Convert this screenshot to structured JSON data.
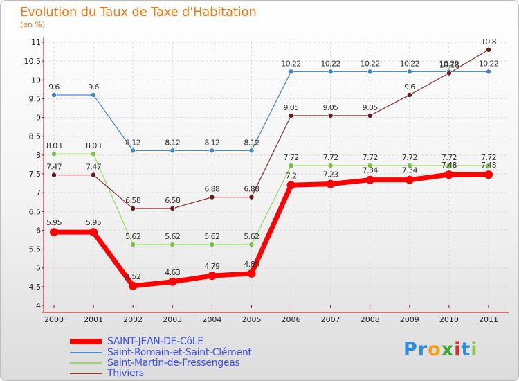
{
  "title": "Evolution du Taux de Taxe d'Habitation",
  "subtitle": "(en %)",
  "logo": {
    "text": "Proxiti",
    "letters": [
      "P",
      "r",
      "o",
      "x",
      "i",
      "t",
      "i"
    ],
    "colors": [
      "#2a8de0",
      "#2a8de0",
      "#f2a01c",
      "#3aa63a",
      "#e02a2a",
      "#2a8de0",
      "#8bc34a"
    ]
  },
  "chart_data": {
    "type": "line",
    "title": "Evolution du Taux de Taxe d'Habitation",
    "ylabel": "(en %)",
    "x": [
      "2000",
      "2001",
      "2002",
      "2003",
      "2004",
      "2005",
      "2006",
      "2007",
      "2008",
      "2009",
      "2010",
      "2011"
    ],
    "ylim": [
      4,
      11
    ],
    "yticks": [
      4,
      4.5,
      5,
      5.5,
      6,
      6.5,
      7,
      7.5,
      8,
      8.5,
      9,
      9.5,
      10,
      10.5,
      11
    ],
    "ytick_labels": [
      "4",
      "4.5",
      "5",
      "5.5",
      "6",
      "6.5",
      "7",
      "7.5",
      "8",
      "8.5",
      "9",
      "9.5",
      "10",
      "10.5",
      "11"
    ],
    "grid": true,
    "series": [
      {
        "name": "Saint-Romain-et-Saint-Clément",
        "color": "#4a90c8",
        "marker": "#3f86c4",
        "width": "thin",
        "values": [
          9.6,
          9.6,
          8.12,
          8.12,
          8.12,
          8.12,
          10.22,
          10.22,
          10.22,
          10.22,
          10.22,
          10.22
        ],
        "labels": [
          "9.6",
          "9.6",
          "8.12",
          "8.12",
          "8.12",
          "8.12",
          "10.22",
          "10.22",
          "10.22",
          "10.22",
          "10.22",
          "10.22"
        ]
      },
      {
        "name": "Saint-Martin-de-Fressengeas",
        "color": "#99dd66",
        "marker": "#7cc242",
        "width": "thin",
        "values": [
          8.03,
          8.03,
          5.62,
          5.62,
          5.62,
          5.62,
          7.72,
          7.72,
          7.72,
          7.72,
          7.72,
          7.72
        ],
        "labels": [
          "8.03",
          "8.03",
          "5.62",
          "5.62",
          "5.62",
          "5.62",
          "7.72",
          "7.72",
          "7.72",
          "7.72",
          "7.72",
          "7.72"
        ]
      },
      {
        "name": "Thiviers",
        "color": "#8a3a3a",
        "marker": "#6a1a1a",
        "width": "thin",
        "values": [
          7.47,
          7.47,
          6.58,
          6.58,
          6.88,
          6.88,
          9.05,
          9.05,
          9.05,
          9.6,
          10.18,
          10.8
        ],
        "labels": [
          "7.47",
          "7.47",
          "6.58",
          "6.58",
          "6.88",
          "6.88",
          "9.05",
          "9.05",
          "9.05",
          "9.6",
          "10.18",
          "10.8"
        ]
      },
      {
        "name": "SAINT-JEAN-DE-CôLE",
        "color": "#ff0000",
        "marker": "#ff0000",
        "width": "thick",
        "values": [
          5.95,
          5.95,
          4.52,
          4.63,
          4.79,
          4.85,
          7.2,
          7.23,
          7.34,
          7.34,
          7.48,
          7.48
        ],
        "labels": [
          "5.95",
          "5.95",
          "4.52",
          "4.63",
          "4.79",
          "4.85",
          "7.2",
          "7.23",
          "7.34",
          "7.34",
          "7.48",
          "7.48"
        ]
      }
    ]
  },
  "legend": [
    {
      "label": "SAINT-JEAN-DE-CôLE",
      "color": "#ff0000",
      "width": "thick"
    },
    {
      "label": "Saint-Romain-et-Saint-Clément",
      "color": "#4a90c8",
      "width": "thin"
    },
    {
      "label": "Saint-Martin-de-Fressengeas",
      "color": "#99dd66",
      "width": "thin"
    },
    {
      "label": "Thiviers",
      "color": "#8a3a3a",
      "width": "thin"
    }
  ]
}
